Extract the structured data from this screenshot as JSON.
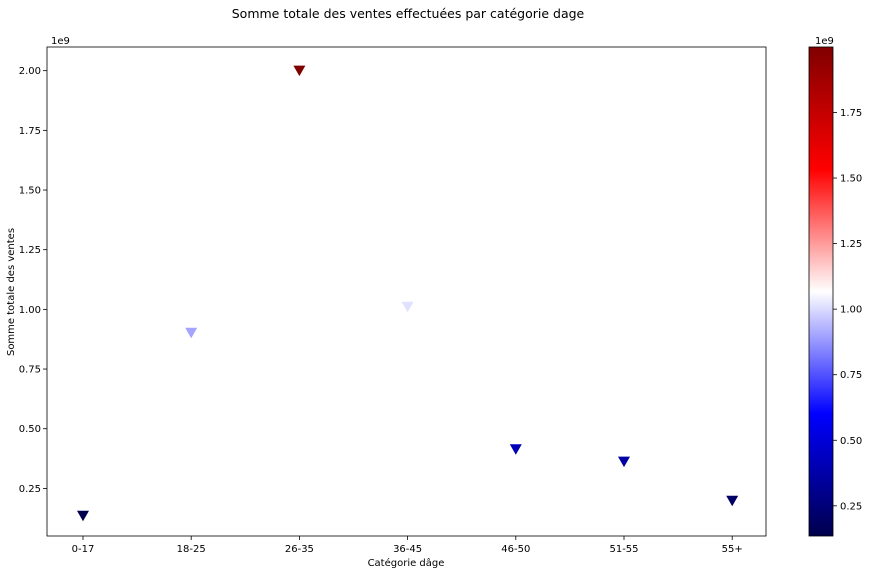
{
  "chart_data": {
    "type": "scatter",
    "title": "Somme totale des ventes effectuées par catégorie dage",
    "xlabel": "Catégorie dâge",
    "ylabel": "Somme totale des ventes",
    "categories": [
      "0-17",
      "18-25",
      "26-35",
      "36-45",
      "46-50",
      "51-55",
      "55+"
    ],
    "values": [
      134913183,
      901669280,
      1999749106,
      1010649565,
      413418223,
      361908356,
      197614842
    ],
    "y_scale_label": "1e9",
    "y_ticks": [
      "0.25",
      "0.50",
      "0.75",
      "1.00",
      "1.25",
      "1.50",
      "1.75",
      "2.00"
    ],
    "marker": "triangle-down",
    "colormap": "seismic",
    "colorbar": {
      "scale_label": "1e9",
      "ticks": [
        "0.25",
        "0.50",
        "0.75",
        "1.00",
        "1.25",
        "1.50",
        "1.75"
      ],
      "min": 134913183,
      "max": 1999749106
    },
    "grid": false,
    "legend": "none"
  }
}
